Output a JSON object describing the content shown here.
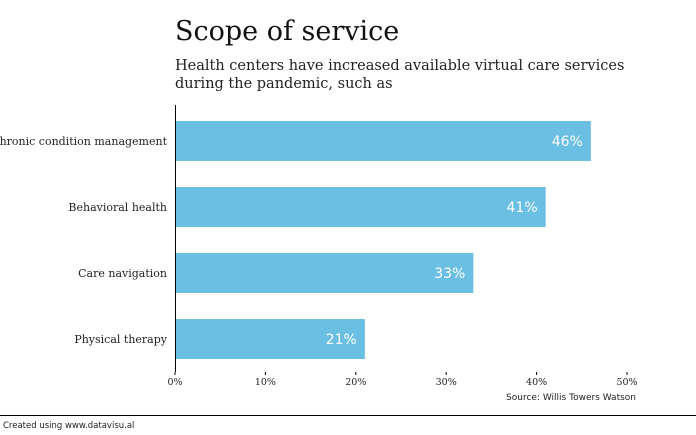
{
  "chart_data": {
    "type": "bar",
    "orientation": "horizontal",
    "title": "Scope of service",
    "subtitle": "Health centers have increased available virtual care services during the pandemic, such as",
    "categories": [
      "Chronic condition management",
      "Behavioral health",
      "Care navigation",
      "Physical therapy"
    ],
    "values": [
      46,
      41,
      33,
      21
    ],
    "value_labels": [
      "46%",
      "41%",
      "33%",
      "21%"
    ],
    "xlim": [
      0,
      50
    ],
    "xticks": [
      0,
      10,
      20,
      30,
      40,
      50
    ],
    "xtick_labels": [
      "0%",
      "10%",
      "20%",
      "30%",
      "40%",
      "50%"
    ],
    "bar_color": "#6bbfe3",
    "grid": false,
    "source": "Source: Willis Towers Watson"
  },
  "footer": {
    "credit": "Created using www.datavisu.al"
  }
}
